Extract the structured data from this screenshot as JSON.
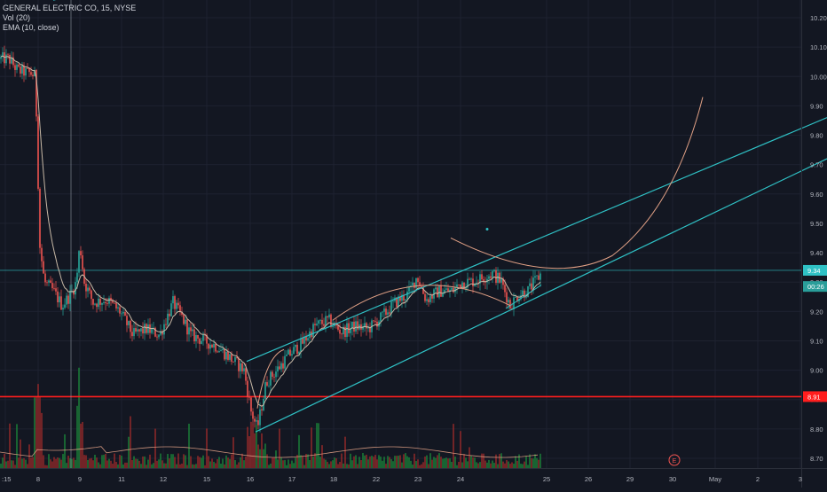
{
  "header": {
    "symbol_line": "GENERAL ELECTRIC CO, 15, NYSE",
    "indicator_vol": "Vol (20)",
    "indicator_ema": "EMA (10, close)"
  },
  "colors": {
    "background": "#131722",
    "grid": "#1e2230",
    "up": "#26a69a",
    "down": "#ef5350",
    "vol_up": "#1b8a3a",
    "vol_down": "#9e2a2a",
    "ema": "#c8b9a6",
    "channel": "#2fc1c5",
    "curve": "#e0a085",
    "support": "#ff1e1e",
    "axis_text": "#b2b5be"
  },
  "chart_data": {
    "type": "candlestick",
    "title": "GENERAL ELECTRIC CO, 15, NYSE",
    "ylim": [
      8.68,
      10.24
    ],
    "y_ticks": [
      "10.20",
      "10.10",
      "10.00",
      "9.90",
      "9.80",
      "9.70",
      "9.60",
      "9.50",
      "9.40",
      "9.30",
      "9.20",
      "9.10",
      "9.00",
      "8.90",
      "8.80",
      "8.70"
    ],
    "x_ticks": [
      ":15",
      "8",
      "9",
      "11",
      "12",
      "15",
      "16",
      "17",
      "18",
      "22",
      "23",
      "24",
      "25",
      "26",
      "29",
      "30",
      "May",
      "2",
      "3"
    ],
    "price_marks": [
      {
        "label": "9.34",
        "value": 9.34,
        "kind": "last_price"
      },
      {
        "label": "00:26",
        "value": 9.285,
        "kind": "countdown"
      },
      {
        "label": "8.91",
        "value": 8.91,
        "kind": "support"
      }
    ],
    "support_level": 8.91,
    "price_path": [
      [
        0,
        10.06
      ],
      [
        10,
        10.06
      ],
      [
        20,
        10.02
      ],
      [
        35,
        10.01
      ],
      [
        40,
        10.0
      ],
      [
        42,
        9.75
      ],
      [
        45,
        9.42
      ],
      [
        50,
        9.3
      ],
      [
        60,
        9.27
      ],
      [
        70,
        9.22
      ],
      [
        80,
        9.26
      ],
      [
        86,
        9.3
      ],
      [
        90,
        9.43
      ],
      [
        95,
        9.3
      ],
      [
        105,
        9.23
      ],
      [
        120,
        9.24
      ],
      [
        135,
        9.2
      ],
      [
        150,
        9.12
      ],
      [
        165,
        9.14
      ],
      [
        180,
        9.12
      ],
      [
        195,
        9.23
      ],
      [
        205,
        9.18
      ],
      [
        215,
        9.12
      ],
      [
        230,
        9.1
      ],
      [
        245,
        9.08
      ],
      [
        260,
        9.04
      ],
      [
        275,
        9.0
      ],
      [
        283,
        8.86
      ],
      [
        290,
        8.8
      ],
      [
        300,
        8.96
      ],
      [
        312,
        9.0
      ],
      [
        325,
        9.05
      ],
      [
        340,
        9.09
      ],
      [
        355,
        9.15
      ],
      [
        370,
        9.17
      ],
      [
        385,
        9.13
      ],
      [
        400,
        9.15
      ],
      [
        415,
        9.14
      ],
      [
        430,
        9.18
      ],
      [
        445,
        9.23
      ],
      [
        460,
        9.26
      ],
      [
        470,
        9.32
      ],
      [
        480,
        9.24
      ],
      [
        495,
        9.27
      ],
      [
        510,
        9.27
      ],
      [
        520,
        9.3
      ],
      [
        530,
        9.3
      ],
      [
        540,
        9.31
      ],
      [
        555,
        9.33
      ],
      [
        565,
        9.3
      ],
      [
        575,
        9.22
      ],
      [
        585,
        9.26
      ],
      [
        595,
        9.27
      ],
      [
        605,
        9.31
      ],
      [
        610,
        9.33
      ]
    ],
    "annotations": [
      {
        "type": "channel_line",
        "from": [
          278,
          9.03
        ],
        "to": [
          932,
          9.86
        ]
      },
      {
        "type": "channel_line",
        "from": [
          288,
          8.79
        ],
        "to": [
          932,
          9.72
        ]
      },
      {
        "type": "channel_line",
        "from": [
          60,
          10.26
        ],
        "to": [
          130,
          10.31
        ]
      },
      {
        "type": "hline",
        "value": 9.34
      },
      {
        "type": "vline",
        "x": 80
      },
      {
        "type": "earnings_marker",
        "x": 760,
        "label": "E"
      }
    ]
  }
}
